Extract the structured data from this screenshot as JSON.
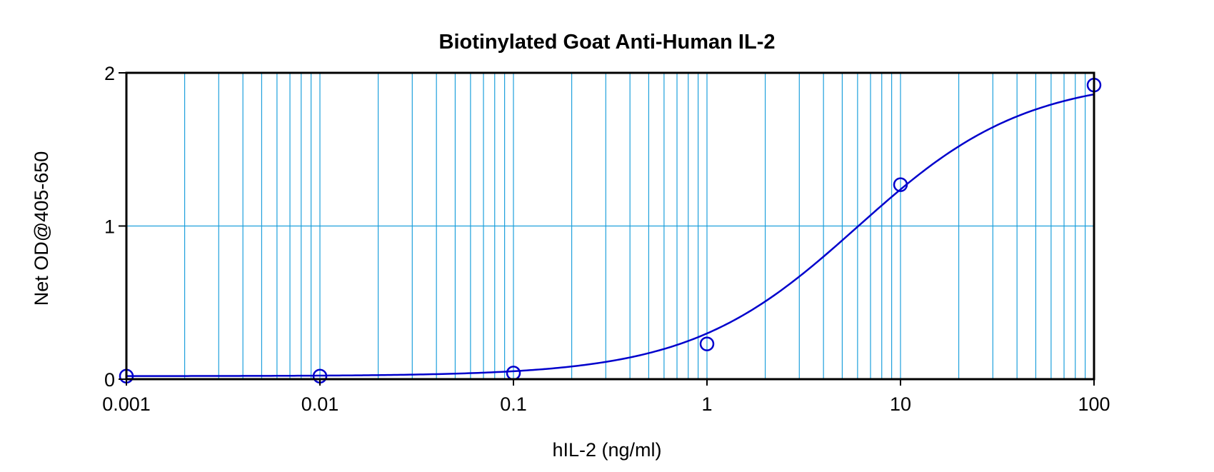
{
  "chart_data": {
    "type": "scatter",
    "title": "Biotinylated Goat Anti-Human IL-2",
    "xlabel": "hIL-2 (ng/ml)",
    "ylabel": "Net OD@405-650",
    "x_scale": "log",
    "xlim": [
      0.001,
      100
    ],
    "ylim": [
      0,
      2
    ],
    "x_ticks": [
      {
        "value": 0.001,
        "label": "0.001"
      },
      {
        "value": 0.01,
        "label": "0.01"
      },
      {
        "value": 0.1,
        "label": "0.1"
      },
      {
        "value": 1,
        "label": "1"
      },
      {
        "value": 10,
        "label": "10"
      },
      {
        "value": 100,
        "label": "100"
      }
    ],
    "y_ticks": [
      {
        "value": 0,
        "label": "0"
      },
      {
        "value": 1,
        "label": "1"
      },
      {
        "value": 2,
        "label": "2"
      }
    ],
    "grid": true,
    "grid_color": "#1ea0dc",
    "series": [
      {
        "color": "#0000cc",
        "points": [
          {
            "x": 0.001,
            "y": 0.02
          },
          {
            "x": 0.01,
            "y": 0.02
          },
          {
            "x": 0.1,
            "y": 0.04
          },
          {
            "x": 1,
            "y": 0.23
          },
          {
            "x": 10,
            "y": 1.27
          },
          {
            "x": 100,
            "y": 1.92
          }
        ],
        "fit_curve": {
          "type": "4PL",
          "bottom": 0.02,
          "top": 1.97,
          "ec50": 6.0,
          "hill": 1.0
        }
      }
    ]
  }
}
